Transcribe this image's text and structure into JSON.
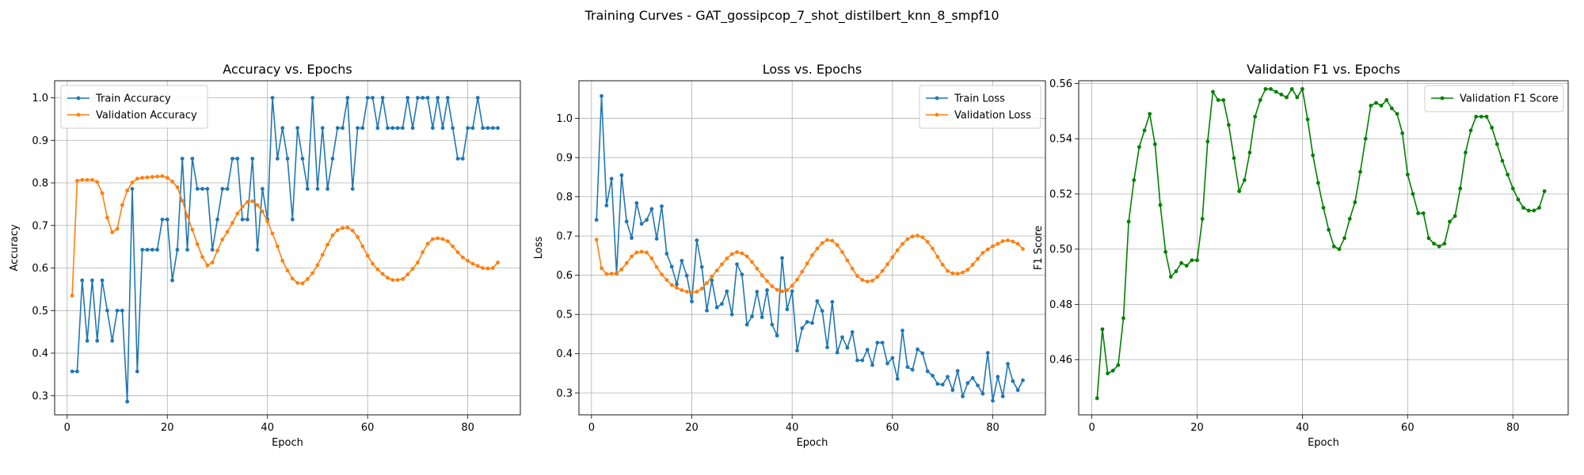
{
  "figure": {
    "suptitle": "Training Curves - GAT_gossipcop_7_shot_distilbert_knn_8_smpf10"
  },
  "chart_data": [
    {
      "type": "line",
      "title": "Accuracy vs. Epochs",
      "xlabel": "Epoch",
      "ylabel": "Accuracy",
      "xlim": [
        -2.5,
        90.5
      ],
      "ylim": [
        0.255,
        1.04
      ],
      "xticks": [
        0,
        20,
        40,
        60,
        80
      ],
      "yticks": [
        0.3,
        0.4,
        0.5,
        0.6,
        0.7,
        0.8,
        0.9,
        1.0
      ],
      "grid": true,
      "legend_position": "upper-left",
      "series": [
        {
          "name": "Train Accuracy",
          "color": "#1f77b4",
          "x_start": 1,
          "values": [
            0.357,
            0.357,
            0.571,
            0.429,
            0.571,
            0.429,
            0.571,
            0.5,
            0.429,
            0.5,
            0.5,
            0.286,
            0.786,
            0.357,
            0.643,
            0.643,
            0.643,
            0.643,
            0.714,
            0.714,
            0.571,
            0.643,
            0.857,
            0.643,
            0.857,
            0.786,
            0.786,
            0.786,
            0.643,
            0.714,
            0.786,
            0.786,
            0.857,
            0.857,
            0.714,
            0.714,
            0.857,
            0.643,
            0.786,
            0.714,
            1.0,
            0.857,
            0.929,
            0.857,
            0.714,
            0.929,
            0.857,
            0.786,
            1.0,
            0.786,
            0.929,
            0.786,
            0.857,
            0.929,
            0.929,
            1.0,
            0.786,
            0.929,
            0.929,
            1.0,
            1.0,
            0.929,
            1.0,
            0.929,
            0.929,
            0.929,
            0.929,
            1.0,
            0.929,
            1.0,
            1.0,
            1.0,
            0.929,
            1.0,
            0.929,
            1.0,
            0.929,
            0.857,
            0.857,
            0.929,
            0.929,
            1.0,
            0.929,
            0.929,
            0.929,
            0.929
          ]
        },
        {
          "name": "Validation Accuracy",
          "color": "#ff7f0e",
          "x_start": 1,
          "values": [
            0.535,
            0.805,
            0.807,
            0.807,
            0.807,
            0.802,
            0.776,
            0.718,
            0.684,
            0.692,
            0.748,
            0.782,
            0.801,
            0.81,
            0.812,
            0.813,
            0.814,
            0.815,
            0.816,
            0.812,
            0.803,
            0.79,
            0.758,
            0.722,
            0.69,
            0.656,
            0.626,
            0.606,
            0.613,
            0.641,
            0.667,
            0.685,
            0.706,
            0.728,
            0.744,
            0.755,
            0.757,
            0.748,
            0.733,
            0.71,
            0.681,
            0.651,
            0.617,
            0.594,
            0.575,
            0.565,
            0.564,
            0.574,
            0.588,
            0.607,
            0.631,
            0.655,
            0.677,
            0.689,
            0.694,
            0.695,
            0.688,
            0.673,
            0.651,
            0.629,
            0.61,
            0.597,
            0.586,
            0.577,
            0.572,
            0.572,
            0.574,
            0.585,
            0.598,
            0.613,
            0.637,
            0.657,
            0.668,
            0.67,
            0.668,
            0.663,
            0.651,
            0.637,
            0.625,
            0.617,
            0.61,
            0.605,
            0.6,
            0.599,
            0.6,
            0.613
          ]
        }
      ]
    },
    {
      "type": "line",
      "title": "Loss vs. Epochs",
      "xlabel": "Epoch",
      "ylabel": "Loss",
      "xlim": [
        -2.5,
        90.5
      ],
      "ylim": [
        0.244,
        1.096
      ],
      "xticks": [
        0,
        20,
        40,
        60,
        80
      ],
      "yticks": [
        0.3,
        0.4,
        0.5,
        0.6,
        0.7,
        0.8,
        0.9,
        1.0
      ],
      "grid": true,
      "legend_position": "upper-right",
      "series": [
        {
          "name": "Train Loss",
          "color": "#1f77b4",
          "x_start": 1,
          "values": [
            0.741,
            1.057,
            0.778,
            0.846,
            0.604,
            0.855,
            0.737,
            0.695,
            0.784,
            0.731,
            0.741,
            0.769,
            0.693,
            0.776,
            0.655,
            0.622,
            0.577,
            0.637,
            0.599,
            0.533,
            0.689,
            0.621,
            0.51,
            0.587,
            0.518,
            0.527,
            0.559,
            0.5,
            0.628,
            0.602,
            0.474,
            0.495,
            0.558,
            0.493,
            0.562,
            0.474,
            0.446,
            0.644,
            0.513,
            0.559,
            0.408,
            0.465,
            0.481,
            0.478,
            0.534,
            0.509,
            0.416,
            0.532,
            0.403,
            0.442,
            0.415,
            0.455,
            0.383,
            0.383,
            0.41,
            0.371,
            0.428,
            0.428,
            0.375,
            0.389,
            0.336,
            0.459,
            0.366,
            0.359,
            0.411,
            0.401,
            0.355,
            0.344,
            0.323,
            0.321,
            0.341,
            0.307,
            0.356,
            0.291,
            0.325,
            0.338,
            0.319,
            0.298,
            0.402,
            0.28,
            0.341,
            0.291,
            0.374,
            0.33,
            0.307,
            0.332
          ]
        },
        {
          "name": "Validation Loss",
          "color": "#ff7f0e",
          "x_start": 1,
          "values": [
            0.691,
            0.618,
            0.603,
            0.604,
            0.605,
            0.615,
            0.631,
            0.648,
            0.658,
            0.66,
            0.658,
            0.643,
            0.621,
            0.602,
            0.588,
            0.575,
            0.568,
            0.562,
            0.558,
            0.556,
            0.558,
            0.566,
            0.58,
            0.597,
            0.612,
            0.628,
            0.643,
            0.654,
            0.659,
            0.656,
            0.648,
            0.634,
            0.617,
            0.6,
            0.585,
            0.572,
            0.563,
            0.559,
            0.562,
            0.573,
            0.589,
            0.609,
            0.63,
            0.651,
            0.668,
            0.682,
            0.69,
            0.688,
            0.677,
            0.659,
            0.638,
            0.617,
            0.598,
            0.588,
            0.584,
            0.586,
            0.596,
            0.611,
            0.628,
            0.646,
            0.664,
            0.68,
            0.692,
            0.699,
            0.701,
            0.697,
            0.685,
            0.668,
            0.647,
            0.627,
            0.611,
            0.605,
            0.604,
            0.607,
            0.614,
            0.627,
            0.642,
            0.657,
            0.666,
            0.674,
            0.68,
            0.687,
            0.689,
            0.686,
            0.68,
            0.667
          ]
        }
      ]
    },
    {
      "type": "line",
      "title": "Validation F1 vs. Epochs",
      "xlabel": "Epoch",
      "ylabel": "F1 Score",
      "xlim": [
        -2.5,
        90.5
      ],
      "ylim": [
        0.44,
        0.561
      ],
      "xticks": [
        0,
        20,
        40,
        60,
        80
      ],
      "yticks": [
        0.46,
        0.48,
        0.5,
        0.52,
        0.54,
        0.56
      ],
      "grid": true,
      "legend_position": "upper-right",
      "series": [
        {
          "name": "Validation F1 Score",
          "color": "#008000",
          "x_start": 1,
          "values": [
            0.446,
            0.471,
            0.455,
            0.456,
            0.458,
            0.475,
            0.51,
            0.525,
            0.537,
            0.543,
            0.549,
            0.538,
            0.516,
            0.499,
            0.49,
            0.492,
            0.495,
            0.494,
            0.496,
            0.496,
            0.511,
            0.539,
            0.557,
            0.554,
            0.554,
            0.545,
            0.533,
            0.521,
            0.525,
            0.535,
            0.548,
            0.554,
            0.558,
            0.558,
            0.557,
            0.556,
            0.555,
            0.558,
            0.555,
            0.558,
            0.547,
            0.534,
            0.524,
            0.515,
            0.507,
            0.501,
            0.5,
            0.504,
            0.511,
            0.517,
            0.528,
            0.54,
            0.552,
            0.553,
            0.552,
            0.554,
            0.551,
            0.549,
            0.542,
            0.527,
            0.52,
            0.513,
            0.513,
            0.504,
            0.502,
            0.501,
            0.502,
            0.51,
            0.512,
            0.522,
            0.535,
            0.543,
            0.548,
            0.548,
            0.548,
            0.544,
            0.538,
            0.532,
            0.527,
            0.522,
            0.518,
            0.515,
            0.514,
            0.514,
            0.515,
            0.521
          ]
        }
      ]
    }
  ]
}
